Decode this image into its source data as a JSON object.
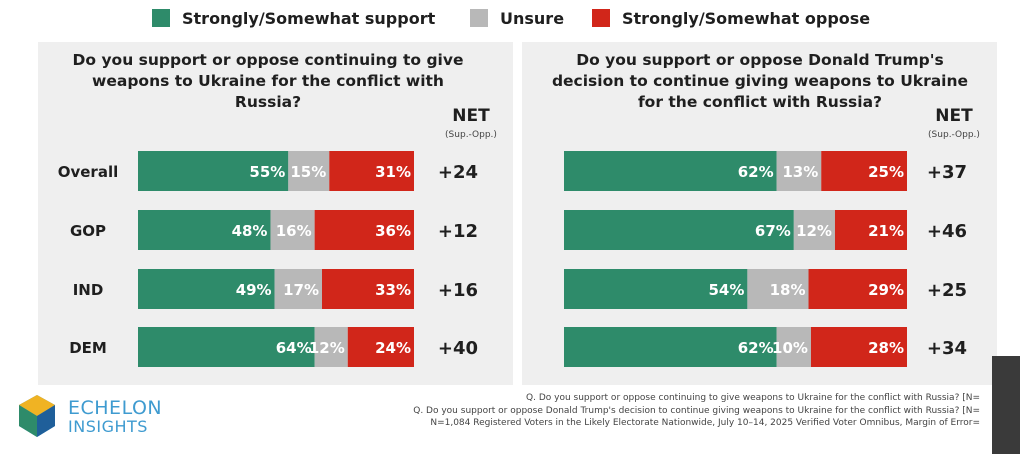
{
  "legend": [
    {
      "label": "Strongly/Somewhat support",
      "color": "#2e8b6a"
    },
    {
      "label": "Unsure",
      "color": "#b8b8b8"
    },
    {
      "label": "Strongly/Somewhat oppose",
      "color": "#d1261a"
    }
  ],
  "net_title": "NET",
  "net_subtitle": "(Sup.-Opp.)",
  "chart_data": [
    {
      "type": "bar",
      "stacked": true,
      "orientation": "horizontal",
      "title": "Do you support or oppose continuing to give weapons to Ukraine for the conflict with Russia?",
      "title_lines": [
        "Do you support or oppose continuing to give",
        "weapons to Ukraine for the conflict with",
        "Russia?"
      ],
      "categories": [
        "Overall",
        "GOP",
        "IND",
        "DEM"
      ],
      "series": [
        {
          "name": "Strongly/Somewhat support",
          "values": [
            55,
            48,
            49,
            64
          ],
          "labels": [
            "55%",
            "48%",
            "49%",
            "64%"
          ]
        },
        {
          "name": "Unsure",
          "values": [
            15,
            16,
            17,
            12
          ],
          "labels": [
            "15%",
            "16%",
            "17%",
            "12%"
          ]
        },
        {
          "name": "Strongly/Somewhat oppose",
          "values": [
            31,
            36,
            33,
            24
          ],
          "labels": [
            "31%",
            "36%",
            "33%",
            "24%"
          ]
        }
      ],
      "net": [
        "+24",
        "+12",
        "+16",
        "+40"
      ]
    },
    {
      "type": "bar",
      "stacked": true,
      "orientation": "horizontal",
      "title": "Do you support or oppose Donald Trump's decision to continue giving weapons to Ukraine for the conflict with Russia?",
      "title_lines": [
        "Do you support or oppose Donald Trump's",
        "decision to continue giving weapons to Ukraine",
        "for the conflict with Russia?"
      ],
      "categories": [
        "Overall",
        "GOP",
        "IND",
        "DEM"
      ],
      "series": [
        {
          "name": "Strongly/Somewhat support",
          "values": [
            62,
            67,
            54,
            62
          ],
          "labels": [
            "62%",
            "67%",
            "54%",
            "62%"
          ]
        },
        {
          "name": "Unsure",
          "values": [
            13,
            12,
            18,
            10
          ],
          "labels": [
            "13%",
            "12%",
            "18%",
            "10%"
          ]
        },
        {
          "name": "Strongly/Somewhat oppose",
          "values": [
            25,
            21,
            29,
            28
          ],
          "labels": [
            "25%",
            "21%",
            "29%",
            "28%"
          ]
        }
      ],
      "net": [
        "+37",
        "+46",
        "+25",
        "+34"
      ]
    }
  ],
  "footnotes": [
    "Q. Do you support or oppose continuing to give weapons to Ukraine for the conflict with Russia? [N=",
    "Q. Do you support or oppose Donald Trump's decision to continue giving weapons to Ukraine for the conflict with Russia? [N=",
    "N=1,084 Registered Voters in the Likely Electorate Nationwide, July 10–14, 2025 Verified Voter Omnibus, Margin of Error="
  ],
  "logo": {
    "line1": "ECHELON",
    "line2": "INSIGHTS"
  }
}
